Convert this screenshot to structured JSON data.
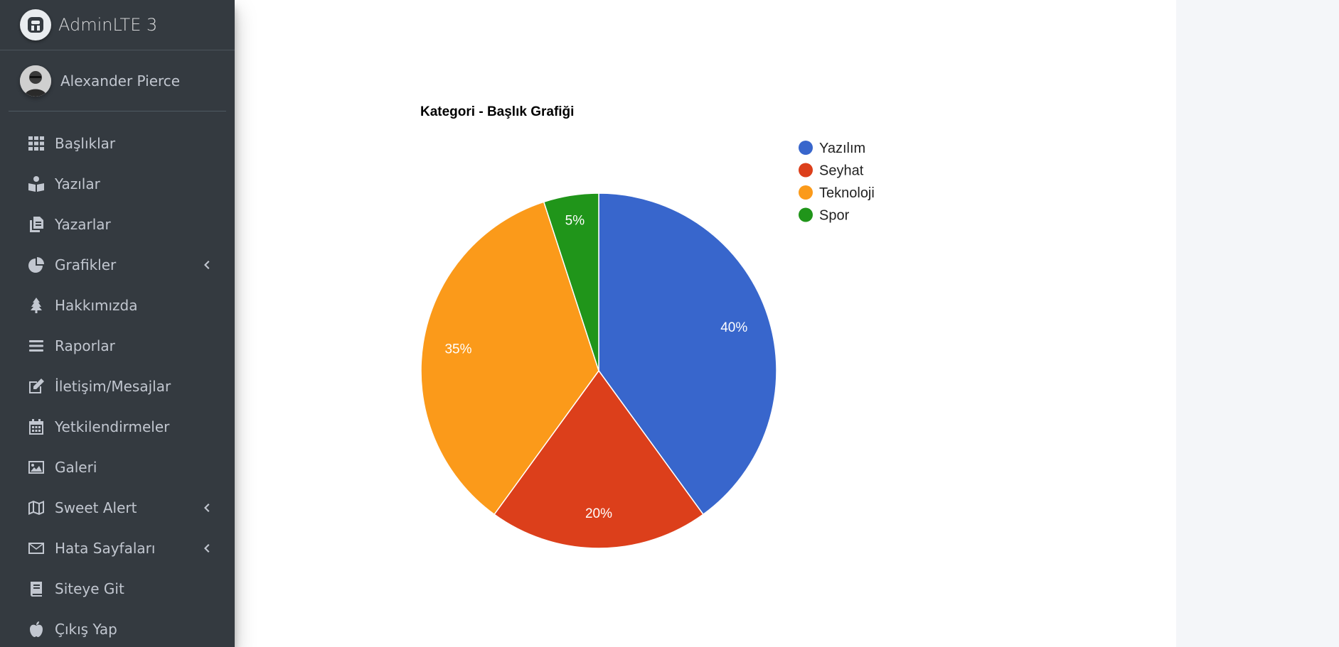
{
  "brand": {
    "title": "AdminLTE 3"
  },
  "user": {
    "name": "Alexander Pierce"
  },
  "sidebar": {
    "items": [
      {
        "label": "Başlıklar",
        "icon": "th-grid-icon",
        "chevron": false
      },
      {
        "label": "Yazılar",
        "icon": "book-reader-icon",
        "chevron": false
      },
      {
        "label": "Yazarlar",
        "icon": "copy-files-icon",
        "chevron": false
      },
      {
        "label": "Grafikler",
        "icon": "pie-chart-icon",
        "chevron": true
      },
      {
        "label": "Hakkımızda",
        "icon": "tree-icon",
        "chevron": false
      },
      {
        "label": "Raporlar",
        "icon": "list-bars-icon",
        "chevron": false
      },
      {
        "label": "İletişim/Mesajlar",
        "icon": "edit-icon",
        "chevron": false
      },
      {
        "label": "Yetkilendirmeler",
        "icon": "calendar-icon",
        "chevron": false
      },
      {
        "label": "Galeri",
        "icon": "image-icon",
        "chevron": false
      },
      {
        "label": "Sweet Alert",
        "icon": "map-icon",
        "chevron": true
      },
      {
        "label": "Hata Sayfaları",
        "icon": "envelope-icon",
        "chevron": true
      },
      {
        "label": "Siteye Git",
        "icon": "book-icon",
        "chevron": false
      },
      {
        "label": "Çıkış Yap",
        "icon": "apple-icon",
        "chevron": false
      }
    ]
  },
  "colors": {
    "sidebar_bg": "#343a40",
    "content_bg": "#ffffff",
    "page_bg": "#f4f6f9"
  },
  "chart_data": {
    "type": "pie",
    "title": "Kategori - Başlık Grafiği",
    "categories": [
      "Yazılım",
      "Seyhat",
      "Teknoloji",
      "Spor"
    ],
    "values": [
      40,
      20,
      35,
      5
    ],
    "labels": [
      "40%",
      "20%",
      "35%",
      "5%"
    ],
    "colors": [
      "#3866cc",
      "#dc3f1b",
      "#fb9a1a",
      "#20951a"
    ],
    "legend_position": "right"
  }
}
